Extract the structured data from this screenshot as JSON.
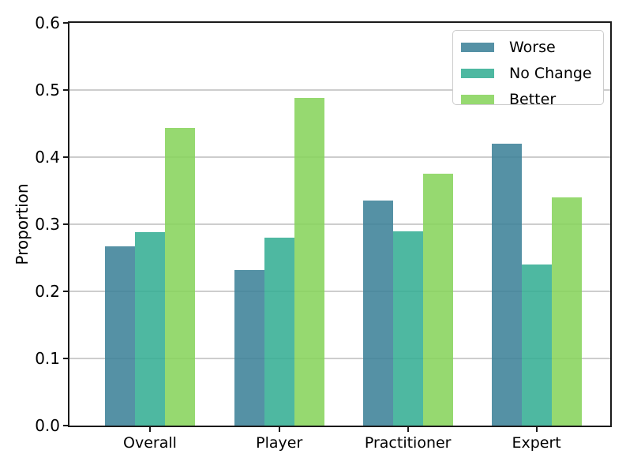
{
  "chart_data": {
    "type": "bar",
    "title": "",
    "categories": [
      "Overall",
      "Player",
      "Practitioner",
      "Expert"
    ],
    "series": [
      {
        "name": "Worse",
        "color": "#3E8298",
        "values": [
          0.267,
          0.232,
          0.335,
          0.42
        ]
      },
      {
        "name": "No Change",
        "color": "#36AE94",
        "values": [
          0.288,
          0.28,
          0.289,
          0.24
        ]
      },
      {
        "name": "Better",
        "color": "#88D45C",
        "values": [
          0.444,
          0.488,
          0.375,
          0.34
        ]
      }
    ],
    "xlabel": "",
    "ylabel": "Proportion",
    "ylim": [
      0,
      0.6
    ],
    "yticks": [
      0.0,
      0.1,
      0.2,
      0.3,
      0.4,
      0.5,
      0.6
    ],
    "ytick_labels": [
      "0.0",
      "0.1",
      "0.2",
      "0.3",
      "0.4",
      "0.5",
      "0.6"
    ],
    "grid": true,
    "gridline_color": "#cdcdcd",
    "spine_color": "#1a1a1a",
    "bar_alpha": 0.88,
    "legend_position": "upper right",
    "legend_labels": [
      "Worse",
      "No Change",
      "Better"
    ]
  }
}
